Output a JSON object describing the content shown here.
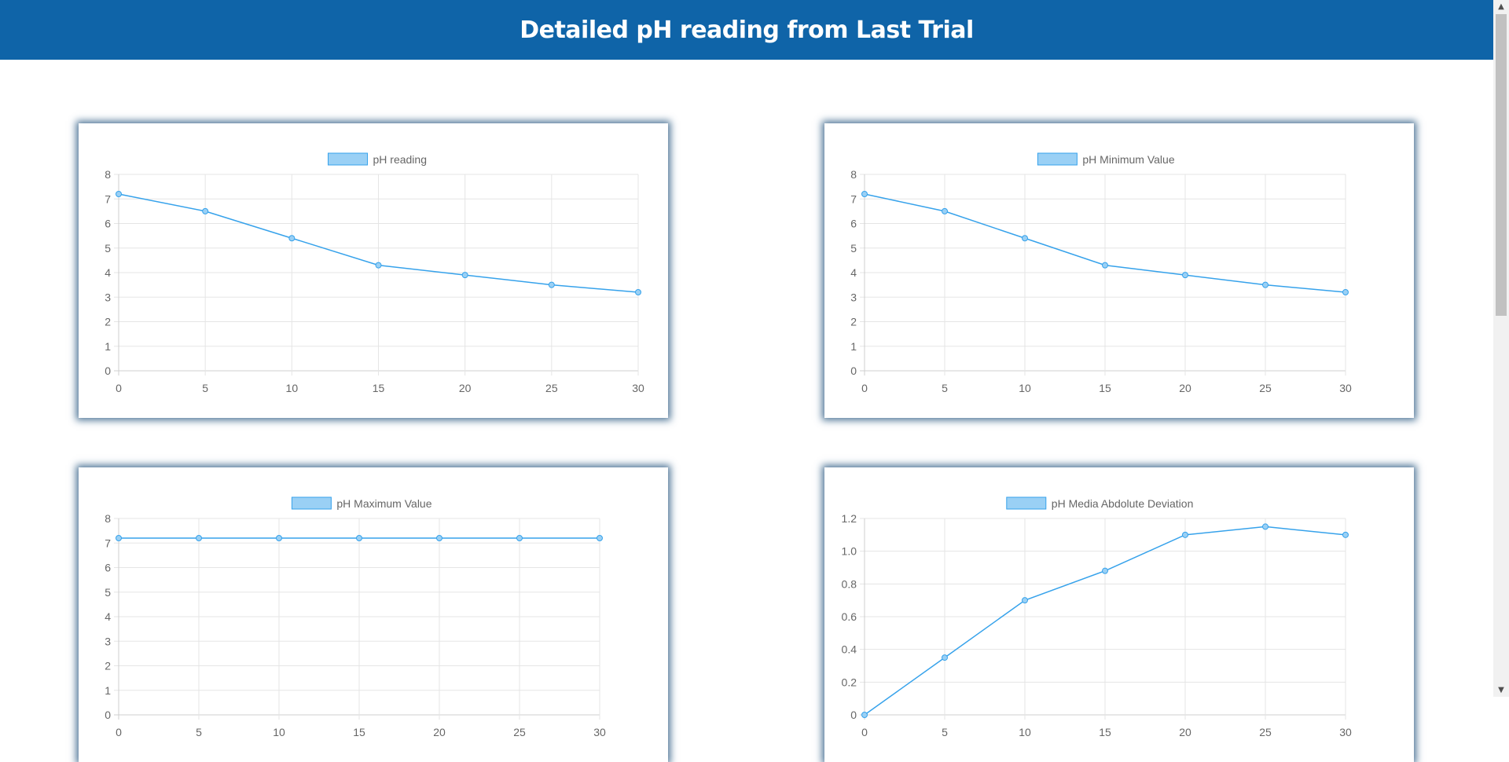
{
  "header": {
    "title": "Detailed pH reading from Last Trial"
  },
  "colors": {
    "header_bg": "#0f64a8",
    "line": "#36a2eb",
    "point_fill": "#9ad0f5",
    "grid": "#e5e5e5",
    "tick_text": "#666666"
  },
  "chart_data": [
    {
      "type": "line",
      "legend": "pH reading",
      "x": [
        0,
        5,
        10,
        15,
        20,
        25,
        30
      ],
      "values": [
        7.2,
        6.5,
        5.4,
        4.3,
        3.9,
        3.5,
        3.2
      ],
      "ylim": [
        0,
        8
      ],
      "yticks": [
        "0",
        "1",
        "2",
        "3",
        "4",
        "5",
        "6",
        "7",
        "8"
      ],
      "xticks": [
        "0",
        "5",
        "10",
        "15",
        "20",
        "25",
        "30"
      ],
      "grid": true,
      "legend_position": "top"
    },
    {
      "type": "line",
      "legend": "pH Minimum Value",
      "x": [
        0,
        5,
        10,
        15,
        20,
        25,
        30
      ],
      "values": [
        7.2,
        6.5,
        5.4,
        4.3,
        3.9,
        3.5,
        3.2
      ],
      "ylim": [
        0,
        8
      ],
      "yticks": [
        "0",
        "1",
        "2",
        "3",
        "4",
        "5",
        "6",
        "7",
        "8"
      ],
      "xticks": [
        "0",
        "5",
        "10",
        "15",
        "20",
        "25",
        "30"
      ],
      "grid": true,
      "legend_position": "top"
    },
    {
      "type": "line",
      "legend": "pH Maximum Value",
      "x": [
        0,
        5,
        10,
        15,
        20,
        25,
        30
      ],
      "values": [
        7.2,
        7.2,
        7.2,
        7.2,
        7.2,
        7.2,
        7.2
      ],
      "ylim": [
        0,
        8
      ],
      "yticks": [
        "0",
        "1",
        "2",
        "3",
        "4",
        "5",
        "6",
        "7",
        "8"
      ],
      "xticks": [
        "0",
        "5",
        "10",
        "15",
        "20",
        "25",
        "30"
      ],
      "grid": true,
      "legend_position": "top"
    },
    {
      "type": "line",
      "legend": "pH Media Abdolute Deviation",
      "x": [
        0,
        5,
        10,
        15,
        20,
        25,
        30
      ],
      "values": [
        0.0,
        0.35,
        0.7,
        0.88,
        1.1,
        1.15,
        1.1
      ],
      "ylim": [
        0,
        1.2
      ],
      "yticks": [
        "0",
        "0.2",
        "0.4",
        "0.6",
        "0.8",
        "1.0",
        "1.2"
      ],
      "xticks": [
        "0",
        "5",
        "10",
        "15",
        "20",
        "25",
        "30"
      ],
      "grid": true,
      "legend_position": "top"
    }
  ]
}
